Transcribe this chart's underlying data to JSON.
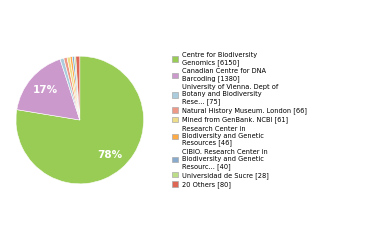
{
  "labels": [
    "Centre for Biodiversity\nGenomics [6150]",
    "Canadian Centre for DNA\nBarcoding [1380]",
    "University of Vienna. Dept of\nBotany and Biodiversity\nRese... [75]",
    "Natural History Museum. London [66]",
    "Mined from GenBank. NCBI [61]",
    "Research Center in\nBiodiversity and Genetic\nResources [46]",
    "CIBIO. Research Center in\nBiodiversity and Genetic\nResourc... [40]",
    "Universidad de Sucre [28]",
    "20 Others [80]"
  ],
  "values": [
    6150,
    1380,
    75,
    66,
    61,
    46,
    40,
    28,
    80
  ],
  "colors": [
    "#99cc55",
    "#cc99cc",
    "#aaccdd",
    "#ee9988",
    "#eedd88",
    "#ffaa44",
    "#88aacc",
    "#bbdd88",
    "#dd6655"
  ],
  "autopct_threshold": 3.0,
  "figsize": [
    3.8,
    2.4
  ],
  "dpi": 100
}
